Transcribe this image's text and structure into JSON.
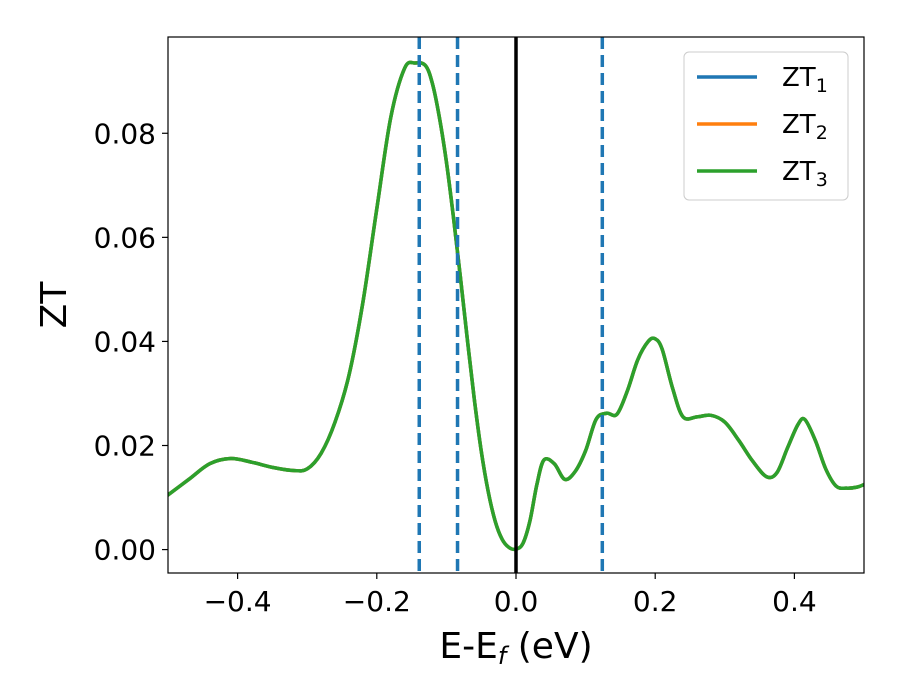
{
  "chart_data": {
    "type": "line",
    "xlabel": "E-E",
    "xlabel_sub": "f",
    "xlabel_unit": " (eV)",
    "ylabel": "ZT",
    "xlim": [
      -0.5,
      0.5
    ],
    "ylim": [
      -0.0045,
      0.0985
    ],
    "xticks": [
      -0.4,
      -0.2,
      0.0,
      0.2,
      0.4
    ],
    "xtick_labels": [
      "−0.4",
      "−0.2",
      "0.0",
      "0.2",
      "0.4"
    ],
    "yticks": [
      0.0,
      0.02,
      0.04,
      0.06,
      0.08
    ],
    "ytick_labels": [
      "0.00",
      "0.02",
      "0.04",
      "0.06",
      "0.08"
    ],
    "grid": false,
    "legend_position": "top-right",
    "colors": {
      "series_1": "#1f77b4",
      "series_2": "#ff7f0e",
      "series_3": "#2ca02c",
      "zero_line": "#000000",
      "dashed_lines": "#1f77b4"
    },
    "legend": [
      {
        "label": "ZT",
        "sub": "1",
        "color": "#1f77b4"
      },
      {
        "label": "ZT",
        "sub": "2",
        "color": "#ff7f0e"
      },
      {
        "label": "ZT",
        "sub": "3",
        "color": "#2ca02c"
      }
    ],
    "vertical_lines": [
      {
        "x": 0.0,
        "style": "solid",
        "color": "#000000"
      },
      {
        "x": -0.139,
        "style": "dashed",
        "color": "#1f77b4"
      },
      {
        "x": -0.084,
        "style": "dashed",
        "color": "#1f77b4"
      },
      {
        "x": 0.124,
        "style": "dashed",
        "color": "#1f77b4"
      }
    ],
    "x": [
      -0.5,
      -0.47,
      -0.44,
      -0.41,
      -0.38,
      -0.35,
      -0.32,
      -0.3,
      -0.28,
      -0.26,
      -0.24,
      -0.22,
      -0.2,
      -0.18,
      -0.16,
      -0.145,
      -0.13,
      -0.12,
      -0.11,
      -0.1,
      -0.09,
      -0.08,
      -0.07,
      -0.06,
      -0.05,
      -0.04,
      -0.03,
      -0.02,
      -0.01,
      0.0,
      0.01,
      0.02,
      0.03,
      0.04,
      0.055,
      0.07,
      0.085,
      0.1,
      0.115,
      0.13,
      0.145,
      0.16,
      0.175,
      0.19,
      0.2,
      0.21,
      0.225,
      0.24,
      0.26,
      0.28,
      0.3,
      0.32,
      0.34,
      0.36,
      0.375,
      0.39,
      0.405,
      0.415,
      0.43,
      0.445,
      0.46,
      0.475,
      0.49,
      0.5
    ],
    "series": [
      {
        "name": "ZT₁",
        "values": [
          0.0105,
          0.0135,
          0.0165,
          0.0175,
          0.0168,
          0.0158,
          0.0152,
          0.0155,
          0.0185,
          0.0245,
          0.0335,
          0.0475,
          0.0655,
          0.083,
          0.0925,
          0.0935,
          0.093,
          0.0895,
          0.083,
          0.0745,
          0.064,
          0.0525,
          0.0405,
          0.029,
          0.019,
          0.0112,
          0.0055,
          0.002,
          0.0004,
          0.0001,
          0.0012,
          0.0055,
          0.0125,
          0.0172,
          0.0165,
          0.0135,
          0.015,
          0.019,
          0.025,
          0.0262,
          0.026,
          0.0305,
          0.0365,
          0.04,
          0.0405,
          0.0385,
          0.031,
          0.0255,
          0.0255,
          0.0258,
          0.0245,
          0.021,
          0.017,
          0.014,
          0.0148,
          0.0195,
          0.024,
          0.025,
          0.021,
          0.0155,
          0.0122,
          0.0118,
          0.012,
          0.0125
        ]
      },
      {
        "name": "ZT₂",
        "values": [
          0.0105,
          0.0135,
          0.0165,
          0.0175,
          0.0168,
          0.0158,
          0.0152,
          0.0155,
          0.0185,
          0.0245,
          0.0335,
          0.0475,
          0.0655,
          0.083,
          0.0925,
          0.0935,
          0.093,
          0.0895,
          0.083,
          0.0745,
          0.064,
          0.0525,
          0.0405,
          0.029,
          0.019,
          0.0112,
          0.0055,
          0.002,
          0.0004,
          0.0001,
          0.0012,
          0.0055,
          0.0125,
          0.0172,
          0.0165,
          0.0135,
          0.015,
          0.019,
          0.025,
          0.0262,
          0.026,
          0.0305,
          0.0365,
          0.04,
          0.0405,
          0.0385,
          0.031,
          0.0255,
          0.0255,
          0.0258,
          0.0245,
          0.021,
          0.017,
          0.014,
          0.0148,
          0.0195,
          0.024,
          0.025,
          0.021,
          0.0155,
          0.0122,
          0.0118,
          0.012,
          0.0125
        ]
      },
      {
        "name": "ZT₃",
        "values": [
          0.0105,
          0.0135,
          0.0165,
          0.0175,
          0.0168,
          0.0158,
          0.0152,
          0.0155,
          0.0185,
          0.0245,
          0.0335,
          0.0475,
          0.0655,
          0.083,
          0.0925,
          0.0935,
          0.093,
          0.0895,
          0.083,
          0.0745,
          0.064,
          0.0525,
          0.0405,
          0.029,
          0.019,
          0.0112,
          0.0055,
          0.002,
          0.0004,
          0.0001,
          0.0012,
          0.0055,
          0.0125,
          0.0172,
          0.0165,
          0.0135,
          0.015,
          0.019,
          0.025,
          0.0262,
          0.026,
          0.0305,
          0.0365,
          0.04,
          0.0405,
          0.0385,
          0.031,
          0.0255,
          0.0255,
          0.0258,
          0.0245,
          0.021,
          0.017,
          0.014,
          0.0148,
          0.0195,
          0.024,
          0.025,
          0.021,
          0.0155,
          0.0122,
          0.0118,
          0.012,
          0.0125
        ]
      }
    ]
  }
}
